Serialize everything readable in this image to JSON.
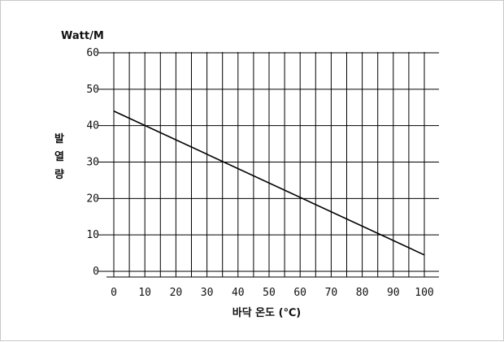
{
  "chart_data": {
    "type": "line",
    "title": "",
    "unit_label": "Watt/M",
    "ylabel_chars": [
      "발",
      "열",
      "량"
    ],
    "xlabel": "바닥 온도 (℃)",
    "xlim": [
      0,
      100
    ],
    "ylim": [
      0,
      60
    ],
    "x_ticks": [
      "0",
      "10",
      "20",
      "30",
      "40",
      "50",
      "60",
      "70",
      "80",
      "90",
      "100"
    ],
    "y_ticks": [
      "0",
      "10",
      "20",
      "30",
      "40",
      "50",
      "60"
    ],
    "grid": true,
    "series": [
      {
        "x": [
          0,
          100
        ],
        "y": [
          44,
          4.5
        ]
      }
    ]
  }
}
